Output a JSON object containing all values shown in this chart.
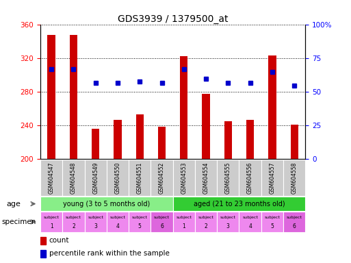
{
  "title": "GDS3939 / 1379500_at",
  "samples": [
    "GSM604547",
    "GSM604548",
    "GSM604549",
    "GSM604550",
    "GSM604551",
    "GSM604552",
    "GSM604553",
    "GSM604554",
    "GSM604555",
    "GSM604556",
    "GSM604557",
    "GSM604558"
  ],
  "counts": [
    348,
    348,
    236,
    247,
    253,
    239,
    323,
    278,
    245,
    247,
    324,
    241
  ],
  "percentiles": [
    67,
    67,
    57,
    57,
    58,
    57,
    67,
    60,
    57,
    57,
    65,
    55
  ],
  "ylim_left": [
    200,
    360
  ],
  "ylim_right": [
    0,
    100
  ],
  "yticks_left": [
    200,
    240,
    280,
    320,
    360
  ],
  "yticks_right": [
    0,
    25,
    50,
    75,
    100
  ],
  "yticklabels_right": [
    "0",
    "25",
    "50",
    "75",
    "100%"
  ],
  "bar_color": "#cc0000",
  "dot_color": "#0000cc",
  "bar_bottom": 200,
  "age_groups": [
    {
      "label": "young (3 to 5 months old)",
      "start": 0,
      "end": 6,
      "color": "#88ee88"
    },
    {
      "label": "aged (21 to 23 months old)",
      "start": 6,
      "end": 12,
      "color": "#33cc33"
    }
  ],
  "specimen_colors_alt": [
    "#ee88ee",
    "#ee88ee",
    "#ee88ee",
    "#ee88ee",
    "#ee88ee",
    "#dd66dd",
    "#ee88ee",
    "#ee88ee",
    "#ee88ee",
    "#ee88ee",
    "#ee88ee",
    "#dd66dd"
  ],
  "specimen_labels": [
    "subject\n1",
    "subject\n2",
    "subject\n3",
    "subject\n4",
    "subject\n5",
    "subject\n6",
    "subject\n1",
    "subject\n2",
    "subject\n3",
    "subject\n4",
    "subject\n5",
    "subject\n6"
  ],
  "gsm_bg_color": "#cccccc",
  "legend_count_color": "#cc0000",
  "legend_dot_color": "#0000cc",
  "bg_color": "#ffffff"
}
